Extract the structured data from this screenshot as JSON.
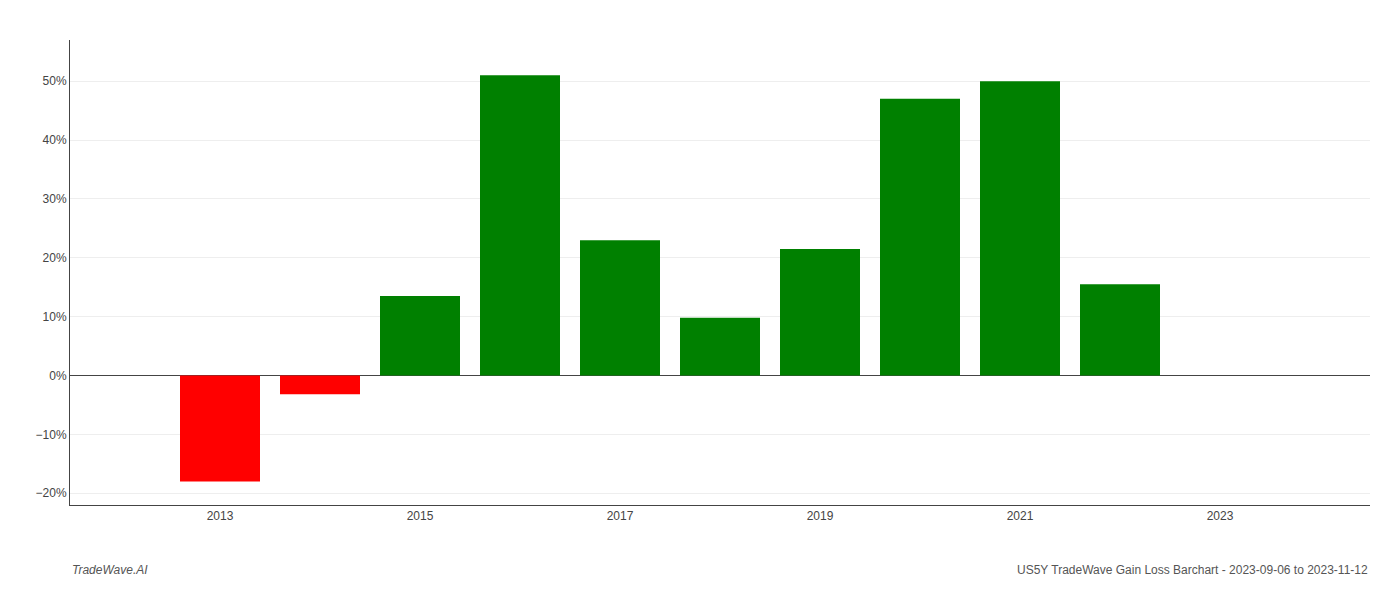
{
  "chart_data": {
    "type": "bar",
    "x": [
      2013,
      2014,
      2015,
      2016,
      2017,
      2018,
      2019,
      2020,
      2021,
      2022
    ],
    "values": [
      -18.0,
      -3.2,
      13.5,
      51.0,
      23.0,
      9.8,
      21.5,
      47.0,
      50.0,
      15.5
    ],
    "colors": [
      "#ff0000",
      "#ff0000",
      "#008000",
      "#008000",
      "#008000",
      "#008000",
      "#008000",
      "#008000",
      "#008000",
      "#008000"
    ],
    "xlim": [
      2011.5,
      2024.5
    ],
    "xticks": [
      2013,
      2015,
      2017,
      2019,
      2021,
      2023
    ],
    "ylim": [
      -22,
      57
    ],
    "yticks": [
      {
        "value": -20,
        "label": "−20%"
      },
      {
        "value": -10,
        "label": "−10%"
      },
      {
        "value": 0,
        "label": "0%"
      },
      {
        "value": 10,
        "label": "10%"
      },
      {
        "value": 20,
        "label": "20%"
      },
      {
        "value": 30,
        "label": "30%"
      },
      {
        "value": 40,
        "label": "40%"
      },
      {
        "value": 50,
        "label": "50%"
      }
    ],
    "grid": true,
    "annotations": [
      "TradeWave.AI",
      "US5Y TradeWave Gain Loss Barchart - 2023-09-06 to 2023-11-12"
    ]
  }
}
